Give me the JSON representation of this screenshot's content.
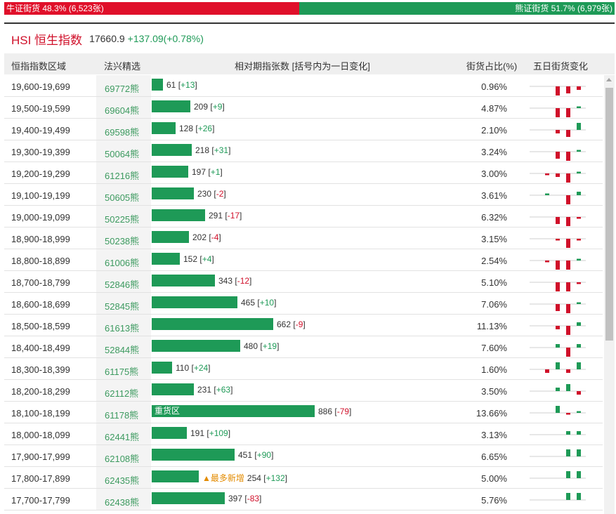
{
  "ratio_bar": {
    "bull_label": "牛证街货 48.3% (6,523张)",
    "bear_label": "熊证街货 51.7% (6,979张)",
    "bull_percent": 48.3,
    "bull_color": "#e0102a",
    "bear_color": "#1e9a57"
  },
  "index": {
    "name": "HSI 恒生指数",
    "value": "17660.9",
    "change": "+137.09(+0.78%)"
  },
  "table": {
    "headers": {
      "range": "恒指指数区域",
      "code": "法兴精选",
      "bar": "相对期指张数 [括号内为一日变化]",
      "pct": "街货占比(%)",
      "spark": "五日街货变化"
    },
    "max_count": 886,
    "rows": [
      {
        "range": "19,600-19,699",
        "code": "69772熊",
        "count": 61,
        "count_text": "61",
        "change": "+13",
        "pct": "0.96%",
        "tag": "",
        "spark": [
          0,
          -3,
          -2,
          -1,
          2
        ]
      },
      {
        "range": "19,500-19,599",
        "code": "69604熊",
        "count": 209,
        "count_text": "209",
        "change": "+9",
        "pct": "4.87%",
        "tag": "",
        "spark": [
          0,
          -3,
          -3,
          0.5,
          0.5
        ]
      },
      {
        "range": "19,400-19,499",
        "code": "69598熊",
        "count": 128,
        "count_text": "128",
        "change": "+26",
        "pct": "2.10%",
        "tag": "",
        "spark": [
          0,
          -1,
          -2,
          2,
          2
        ]
      },
      {
        "range": "19,300-19,399",
        "code": "50064熊",
        "count": 218,
        "count_text": "218",
        "change": "+31",
        "pct": "3.24%",
        "tag": "",
        "spark": [
          0,
          -2,
          -3,
          0.5,
          1
        ]
      },
      {
        "range": "19,200-19,299",
        "code": "61216熊",
        "count": 197,
        "count_text": "197",
        "change": "+1",
        "pct": "3.00%",
        "tag": "",
        "spark": [
          -0.5,
          -1,
          -3,
          0.5,
          0.5
        ]
      },
      {
        "range": "19,100-19,199",
        "code": "50605熊",
        "count": 230,
        "count_text": "230",
        "change": "-2",
        "pct": "3.61%",
        "tag": "",
        "spark": [
          0.5,
          0,
          -3,
          1,
          -0.5
        ]
      },
      {
        "range": "19,000-19,099",
        "code": "50225熊",
        "count": 291,
        "count_text": "291",
        "change": "-17",
        "pct": "6.32%",
        "tag": "",
        "spark": [
          0,
          -2,
          -3,
          -0.5,
          -0.5
        ]
      },
      {
        "range": "18,900-18,999",
        "code": "50238熊",
        "count": 202,
        "count_text": "202",
        "change": "-4",
        "pct": "3.15%",
        "tag": "",
        "spark": [
          0,
          -0.5,
          -3,
          -0.5,
          -0.5
        ]
      },
      {
        "range": "18,800-18,899",
        "code": "61006熊",
        "count": 152,
        "count_text": "152",
        "change": "+4",
        "pct": "2.54%",
        "tag": "",
        "spark": [
          -0.5,
          -3,
          -3,
          0.5,
          -0.5
        ]
      },
      {
        "range": "18,700-18,799",
        "code": "52846熊",
        "count": 343,
        "count_text": "343",
        "change": "-12",
        "pct": "5.10%",
        "tag": "",
        "spark": [
          0,
          -3,
          -3,
          -0.5,
          -0.5
        ]
      },
      {
        "range": "18,600-18,699",
        "code": "52845熊",
        "count": 465,
        "count_text": "465",
        "change": "+10",
        "pct": "7.06%",
        "tag": "",
        "spark": [
          0,
          -2,
          -3,
          0.5,
          0.5
        ]
      },
      {
        "range": "18,500-18,599",
        "code": "61613熊",
        "count": 662,
        "count_text": "662",
        "change": "-9",
        "pct": "11.13%",
        "tag": "",
        "spark": [
          0,
          -1,
          -3,
          1,
          -0.5
        ]
      },
      {
        "range": "18,400-18,499",
        "code": "52844熊",
        "count": 480,
        "count_text": "480",
        "change": "+19",
        "pct": "7.60%",
        "tag": "",
        "spark": [
          0,
          1,
          -3,
          1,
          0.5
        ]
      },
      {
        "range": "18,300-18,399",
        "code": "61175熊",
        "count": 110,
        "count_text": "110",
        "change": "+24",
        "pct": "1.60%",
        "tag": "",
        "spark": [
          -1,
          2,
          -1,
          2,
          1
        ]
      },
      {
        "range": "18,200-18,299",
        "code": "62112熊",
        "count": 231,
        "count_text": "231",
        "change": "+63",
        "pct": "3.50%",
        "tag": "",
        "spark": [
          0,
          1,
          2,
          -1,
          1
        ]
      },
      {
        "range": "18,100-18,199",
        "code": "61178熊",
        "count": 886,
        "count_text": "886",
        "change": "-79",
        "pct": "13.66%",
        "tag": "重货区",
        "spark": [
          0,
          2,
          -0.5,
          0.5,
          -0.5
        ]
      },
      {
        "range": "18,000-18,099",
        "code": "62441熊",
        "count": 191,
        "count_text": "191",
        "change": "+109",
        "pct": "3.13%",
        "tag": "",
        "spark": [
          0,
          0,
          1,
          1,
          2
        ]
      },
      {
        "range": "17,900-17,999",
        "code": "62108熊",
        "count": 451,
        "count_text": "451",
        "change": "+90",
        "pct": "6.65%",
        "tag": "",
        "spark": [
          0,
          0,
          2,
          2,
          1
        ]
      },
      {
        "range": "17,800-17,899",
        "code": "62435熊",
        "count": 254,
        "count_text": "254",
        "change": "+132",
        "pct": "5.00%",
        "tag": "▲最多新增",
        "spark": [
          0,
          0,
          2,
          2,
          2
        ]
      },
      {
        "range": "17,700-17,799",
        "code": "62438熊",
        "count": 397,
        "count_text": "397",
        "change": "-83",
        "pct": "5.76%",
        "tag": "",
        "spark": [
          0,
          0,
          2,
          2,
          -0.5
        ]
      }
    ]
  }
}
